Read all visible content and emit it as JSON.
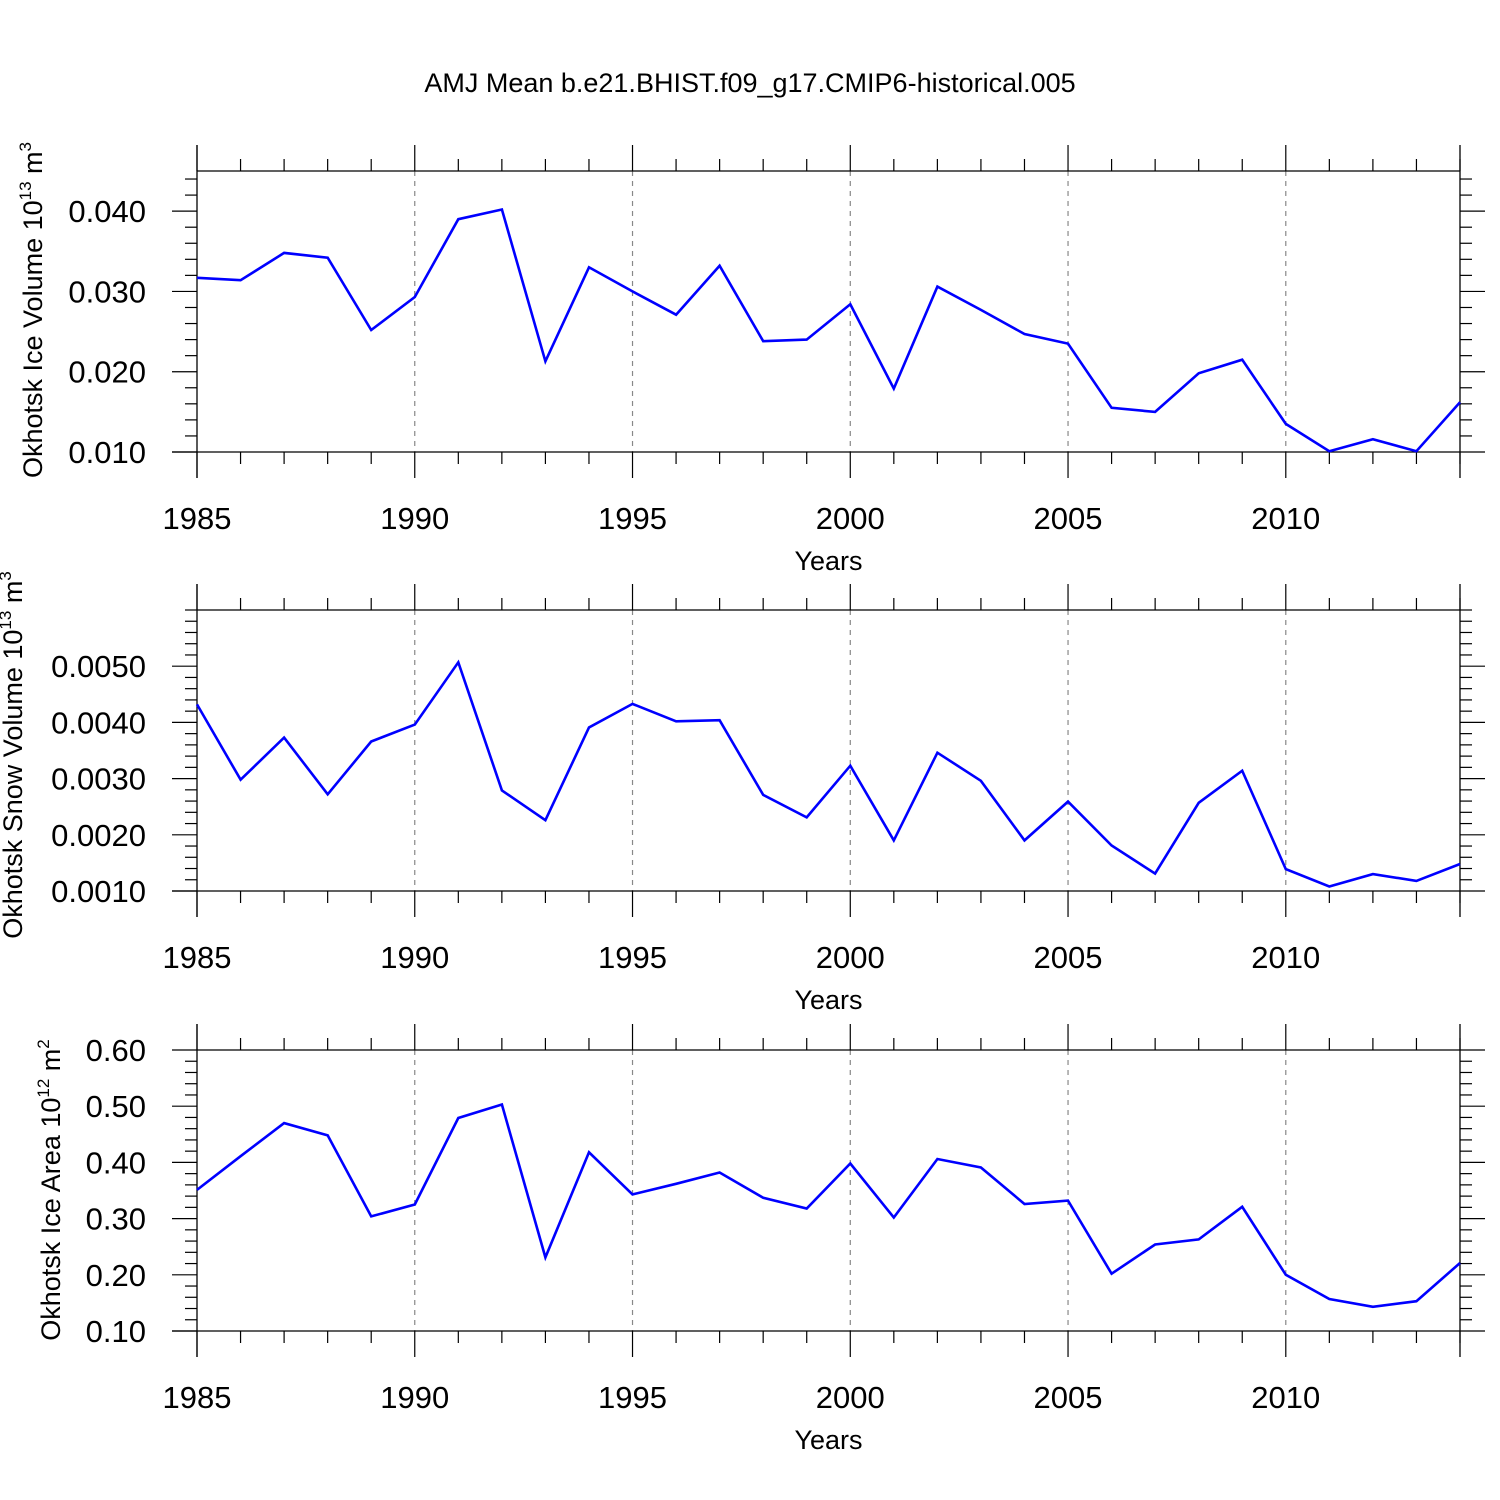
{
  "title": "AMJ Mean b.e21.BHIST.f09_g17.CMIP6-historical.005",
  "colors": {
    "line": "#0000ff",
    "axis": "#000000",
    "grid": "#888888",
    "background": "#ffffff"
  },
  "chart_data": [
    {
      "type": "line",
      "xlabel": "Years",
      "ylabel": "Okhotsk Ice Volume 10",
      "ylabel_exp": "13",
      "ylabel_unit": " m",
      "ylabel_unit_exp": "3",
      "xlim": [
        1985,
        2014
      ],
      "ylim": [
        0.01,
        0.045
      ],
      "xticks": [
        1985,
        1990,
        1995,
        2000,
        2005,
        2010
      ],
      "xtick_labels": [
        "1985",
        "1990",
        "1995",
        "2000",
        "2005",
        "2010"
      ],
      "yticks": [
        0.01,
        0.02,
        0.03,
        0.04
      ],
      "ytick_labels": [
        "0.010",
        "0.020",
        "0.030",
        "0.040"
      ],
      "grid": "vertical dashed at major x ticks",
      "series": [
        {
          "x": [
            1985,
            1986,
            1987,
            1988,
            1989,
            1990,
            1991,
            1992,
            1993,
            1994,
            1995,
            1996,
            1997,
            1998,
            1999,
            2000,
            2001,
            2002,
            2003,
            2004,
            2005,
            2006,
            2007,
            2008,
            2009,
            2010,
            2011,
            2012,
            2013,
            2014
          ],
          "values": [
            0.0317,
            0.0314,
            0.0348,
            0.0342,
            0.0252,
            0.0293,
            0.039,
            0.0402,
            0.0213,
            0.033,
            0.03,
            0.0271,
            0.0332,
            0.0238,
            0.024,
            0.0284,
            0.0179,
            0.0306,
            0.0277,
            0.0247,
            0.0235,
            0.0155,
            0.015,
            0.0198,
            0.0215,
            0.0135,
            0.0101,
            0.0116,
            0.0101,
            0.0162
          ]
        }
      ]
    },
    {
      "type": "line",
      "xlabel": "Years",
      "ylabel": "Okhotsk Snow Volume 10",
      "ylabel_exp": "13",
      "ylabel_unit": " m",
      "ylabel_unit_exp": "3",
      "xlim": [
        1985,
        2014
      ],
      "ylim": [
        0.001,
        0.006
      ],
      "xticks": [
        1985,
        1990,
        1995,
        2000,
        2005,
        2010
      ],
      "xtick_labels": [
        "1985",
        "1990",
        "1995",
        "2000",
        "2005",
        "2010"
      ],
      "yticks": [
        0.001,
        0.002,
        0.003,
        0.004,
        0.005
      ],
      "ytick_labels": [
        "0.0010",
        "0.0020",
        "0.0030",
        "0.0040",
        "0.0050"
      ],
      "grid": "vertical dashed at major x ticks",
      "series": [
        {
          "x": [
            1985,
            1986,
            1987,
            1988,
            1989,
            1990,
            1991,
            1992,
            1993,
            1994,
            1995,
            1996,
            1997,
            1998,
            1999,
            2000,
            2001,
            2002,
            2003,
            2004,
            2005,
            2006,
            2007,
            2008,
            2009,
            2010,
            2011,
            2012,
            2013,
            2014
          ],
          "values": [
            0.00432,
            0.00298,
            0.00373,
            0.00272,
            0.00366,
            0.00396,
            0.00507,
            0.00279,
            0.00226,
            0.00391,
            0.00433,
            0.00402,
            0.00404,
            0.00271,
            0.00231,
            0.00323,
            0.0019,
            0.00346,
            0.00296,
            0.0019,
            0.00259,
            0.00181,
            0.00131,
            0.00257,
            0.00314,
            0.00139,
            0.00108,
            0.0013,
            0.00118,
            0.00148
          ]
        }
      ]
    },
    {
      "type": "line",
      "xlabel": "Years",
      "ylabel": "Okhotsk Ice Area 10",
      "ylabel_exp": "12",
      "ylabel_unit": " m",
      "ylabel_unit_exp": "2",
      "xlim": [
        1985,
        2014
      ],
      "ylim": [
        0.1,
        0.6
      ],
      "xticks": [
        1985,
        1990,
        1995,
        2000,
        2005,
        2010
      ],
      "xtick_labels": [
        "1985",
        "1990",
        "1995",
        "2000",
        "2005",
        "2010"
      ],
      "yticks": [
        0.1,
        0.2,
        0.3,
        0.4,
        0.5,
        0.6
      ],
      "ytick_labels": [
        "0.10",
        "0.20",
        "0.30",
        "0.40",
        "0.50",
        "0.60"
      ],
      "grid": "vertical dashed at major x ticks",
      "series": [
        {
          "x": [
            1985,
            1986,
            1987,
            1988,
            1989,
            1990,
            1991,
            1992,
            1993,
            1994,
            1995,
            1996,
            1997,
            1998,
            1999,
            2000,
            2001,
            2002,
            2003,
            2004,
            2005,
            2006,
            2007,
            2008,
            2009,
            2010,
            2011,
            2012,
            2013,
            2014
          ],
          "values": [
            0.351,
            0.411,
            0.47,
            0.448,
            0.304,
            0.325,
            0.479,
            0.503,
            0.231,
            0.418,
            0.343,
            0.362,
            0.382,
            0.337,
            0.318,
            0.398,
            0.302,
            0.406,
            0.391,
            0.326,
            0.332,
            0.202,
            0.254,
            0.263,
            0.321,
            0.2,
            0.157,
            0.143,
            0.153,
            0.221
          ]
        }
      ]
    }
  ]
}
